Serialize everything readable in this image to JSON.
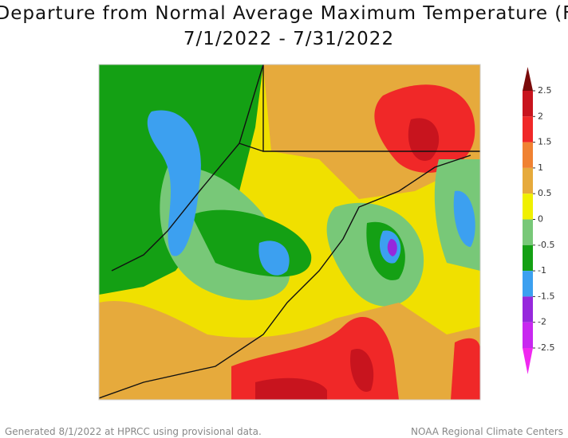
{
  "chart_data": {
    "type": "map",
    "title": "Departure from Normal Average Maximum Temperature (F)",
    "subtitle": "7/1/2022 - 7/31/2022",
    "colorbar": {
      "ticks": [
        2.5,
        2,
        1.5,
        1,
        0.5,
        0,
        -0.5,
        -1,
        -1.5,
        -2,
        -2.5
      ],
      "colors": [
        "#7a0a0a",
        "#c8141e",
        "#f02828",
        "#f08232",
        "#e6aa3c",
        "#f0f000",
        "#78c878",
        "#14a014",
        "#3ca0f0",
        "#9628dc",
        "#c828f0",
        "#f028f0"
      ]
    },
    "footer_left": "Generated 8/1/2022 at HPRCC using provisional data.",
    "footer_right": "NOAA Regional Climate Centers"
  }
}
